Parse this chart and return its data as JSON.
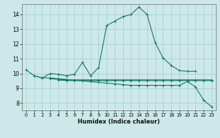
{
  "xlabel": "Humidex (Indice chaleur)",
  "bg_color": "#cce8e8",
  "grid_color": "#aacfcf",
  "line_color": "#1a7a6e",
  "xlim": [
    -0.5,
    23.5
  ],
  "ylim": [
    7.5,
    14.7
  ],
  "yticks": [
    8,
    9,
    10,
    11,
    12,
    13,
    14
  ],
  "xticks": [
    0,
    1,
    2,
    3,
    4,
    5,
    6,
    7,
    8,
    9,
    10,
    11,
    12,
    13,
    14,
    15,
    16,
    17,
    18,
    19,
    20,
    21,
    22,
    23
  ],
  "series": [
    {
      "x": [
        0,
        1,
        2,
        3,
        4,
        5,
        6,
        7,
        8,
        9,
        10,
        11,
        12,
        13,
        14,
        15,
        16,
        17,
        18,
        19,
        20,
        21
      ],
      "y": [
        10.25,
        9.85,
        9.7,
        10.0,
        9.95,
        9.85,
        9.95,
        10.75,
        9.85,
        10.4,
        13.25,
        13.55,
        13.85,
        14.0,
        14.5,
        14.0,
        12.1,
        11.05,
        10.55,
        10.2,
        10.15,
        10.15
      ]
    },
    {
      "x": [
        1,
        2,
        3,
        4,
        5,
        6,
        7,
        8,
        9,
        10,
        11,
        12,
        13,
        14,
        15,
        16,
        17,
        18,
        19,
        20,
        21,
        22,
        23
      ],
      "y": [
        9.85,
        9.7,
        9.7,
        9.65,
        9.6,
        9.55,
        9.5,
        9.45,
        9.4,
        9.35,
        9.3,
        9.25,
        9.2,
        9.2,
        9.2,
        9.2,
        9.2,
        9.2,
        9.2,
        9.45,
        9.1,
        8.2,
        7.75
      ]
    },
    {
      "x": [
        3,
        4,
        5,
        6,
        7,
        8,
        9,
        10,
        11,
        12,
        13,
        14,
        15,
        16,
        17,
        18,
        19,
        20,
        21,
        22,
        23
      ],
      "y": [
        9.65,
        9.6,
        9.58,
        9.57,
        9.57,
        9.57,
        9.57,
        9.57,
        9.57,
        9.57,
        9.57,
        9.57,
        9.57,
        9.57,
        9.57,
        9.57,
        9.57,
        9.57,
        9.57,
        9.57,
        9.57
      ]
    },
    {
      "x": [
        4,
        5,
        6,
        7,
        8,
        9,
        10,
        11,
        12,
        13,
        14,
        15,
        16,
        17,
        18,
        19,
        20,
        21,
        22,
        23
      ],
      "y": [
        9.55,
        9.53,
        9.52,
        9.52,
        9.52,
        9.52,
        9.52,
        9.52,
        9.52,
        9.52,
        9.52,
        9.52,
        9.52,
        9.52,
        9.52,
        9.52,
        9.52,
        9.52,
        9.52,
        9.52
      ]
    }
  ]
}
